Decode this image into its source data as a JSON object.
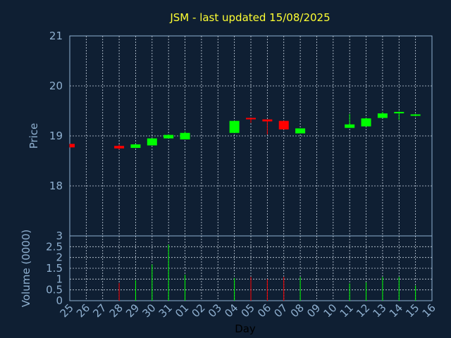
{
  "chart_data": [
    {
      "type": "candlestick",
      "title": "JSM - last updated 15/08/2025",
      "ylabel": "Price",
      "ylim": [
        17.0,
        21.0
      ],
      "yticks": [
        18,
        19,
        20,
        21
      ],
      "grid": true,
      "up_color": "#00ff00",
      "down_color": "#ff0000",
      "categories": [
        "25",
        "26",
        "27",
        "28",
        "29",
        "30",
        "31",
        "01",
        "02",
        "03",
        "04",
        "05",
        "06",
        "07",
        "08",
        "09",
        "10",
        "11",
        "12",
        "13",
        "14",
        "15",
        "16"
      ],
      "candles": [
        {
          "x": "25",
          "open": 18.84,
          "high": 18.84,
          "low": 18.77,
          "close": 18.77
        },
        {
          "x": "28",
          "open": 18.8,
          "high": 18.83,
          "low": 18.73,
          "close": 18.75
        },
        {
          "x": "29",
          "open": 18.76,
          "high": 18.84,
          "low": 18.76,
          "close": 18.83
        },
        {
          "x": "30",
          "open": 18.81,
          "high": 18.95,
          "low": 18.81,
          "close": 18.95
        },
        {
          "x": "31",
          "open": 18.95,
          "high": 19.03,
          "low": 18.95,
          "close": 19.02
        },
        {
          "x": "01",
          "open": 18.93,
          "high": 19.09,
          "low": 18.93,
          "close": 19.06
        },
        {
          "x": "04",
          "open": 19.06,
          "high": 19.3,
          "low": 19.06,
          "close": 19.3
        },
        {
          "x": "05",
          "open": 19.36,
          "high": 19.36,
          "low": 19.26,
          "close": 19.34
        },
        {
          "x": "06",
          "open": 19.33,
          "high": 19.33,
          "low": 19.03,
          "close": 19.29
        },
        {
          "x": "07",
          "open": 19.3,
          "high": 19.3,
          "low": 19.13,
          "close": 19.13
        },
        {
          "x": "08",
          "open": 19.05,
          "high": 19.15,
          "low": 19.05,
          "close": 19.15
        },
        {
          "x": "11",
          "open": 19.16,
          "high": 19.44,
          "low": 19.16,
          "close": 19.23
        },
        {
          "x": "12",
          "open": 19.19,
          "high": 19.36,
          "low": 19.19,
          "close": 19.35
        },
        {
          "x": "13",
          "open": 19.36,
          "high": 19.48,
          "low": 19.36,
          "close": 19.45
        },
        {
          "x": "14",
          "open": 19.46,
          "high": 19.49,
          "low": 19.32,
          "close": 19.48
        },
        {
          "x": "15",
          "open": 19.41,
          "high": 19.44,
          "low": 19.39,
          "close": 19.43
        }
      ]
    },
    {
      "type": "bar",
      "ylabel": "Volume (0000)",
      "xlabel": "Day",
      "ylim": [
        0,
        3
      ],
      "yticks": [
        0,
        0.5,
        1,
        1.5,
        2,
        2.5,
        3
      ],
      "ytick_labels": [
        "0",
        "0.5",
        "1",
        "1.5",
        "2",
        "2.5",
        "3"
      ],
      "grid": true,
      "categories": [
        "25",
        "26",
        "27",
        "28",
        "29",
        "30",
        "31",
        "01",
        "02",
        "03",
        "04",
        "05",
        "06",
        "07",
        "08",
        "09",
        "10",
        "11",
        "12",
        "13",
        "14",
        "15",
        "16"
      ],
      "bars": [
        {
          "x": "28",
          "value": 0.82,
          "color": "#ff0000"
        },
        {
          "x": "29",
          "value": 0.95,
          "color": "#00ff00"
        },
        {
          "x": "30",
          "value": 1.68,
          "color": "#00ff00"
        },
        {
          "x": "31",
          "value": 2.6,
          "color": "#00ff00"
        },
        {
          "x": "01",
          "value": 1.2,
          "color": "#00ff00"
        },
        {
          "x": "04",
          "value": 1.05,
          "color": "#00ff00"
        },
        {
          "x": "05",
          "value": 1.1,
          "color": "#ff0000"
        },
        {
          "x": "06",
          "value": 1.0,
          "color": "#ff0000"
        },
        {
          "x": "07",
          "value": 1.1,
          "color": "#ff0000"
        },
        {
          "x": "08",
          "value": 1.1,
          "color": "#00ff00"
        },
        {
          "x": "11",
          "value": 0.8,
          "color": "#00ff00"
        },
        {
          "x": "12",
          "value": 0.85,
          "color": "#00ff00"
        },
        {
          "x": "13",
          "value": 1.1,
          "color": "#00ff00"
        },
        {
          "x": "14",
          "value": 1.1,
          "color": "#00ff00"
        },
        {
          "x": "15",
          "value": 0.7,
          "color": "#00ff00"
        }
      ]
    }
  ]
}
